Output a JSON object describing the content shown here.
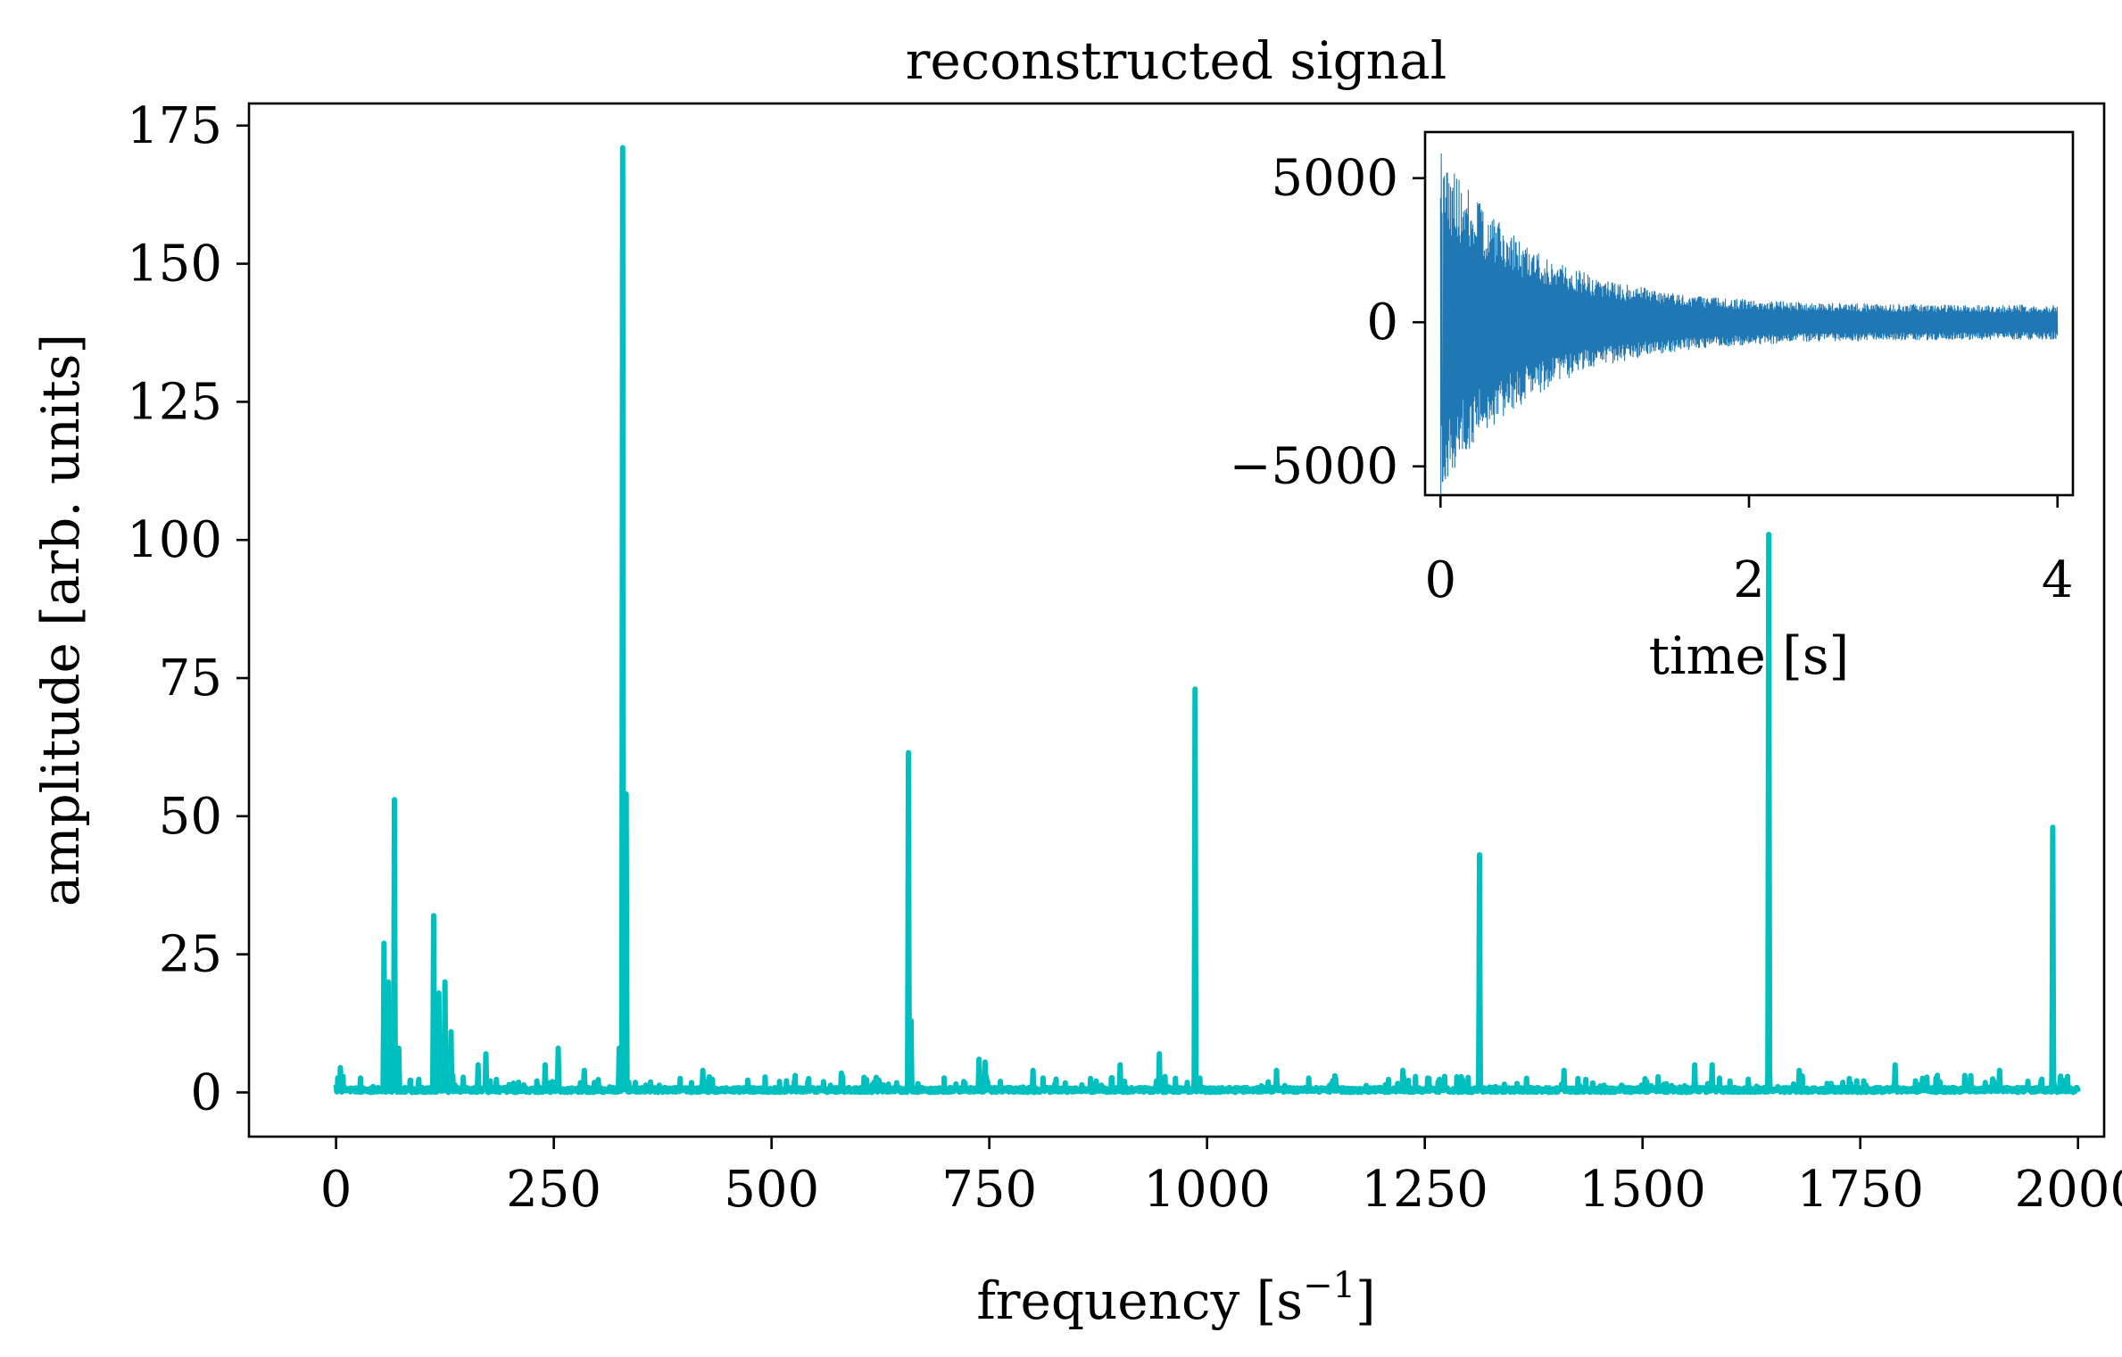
{
  "chart_data": [
    {
      "type": "line",
      "title": "reconstructed signal",
      "xlabel": "frequency [s",
      "xlabel_sup": "−1",
      "xlabel_end": "]",
      "ylabel": "amplitude [arb. units]",
      "xlim": [
        -100,
        2030
      ],
      "ylim": [
        -8,
        179
      ],
      "xticks": [
        0,
        250,
        500,
        750,
        1000,
        1250,
        1500,
        1750,
        2000
      ],
      "xtick_labels": [
        "0",
        "250",
        "500",
        "750",
        "1000",
        "1250",
        "1500",
        "1750",
        "2000"
      ],
      "yticks": [
        0,
        25,
        50,
        75,
        100,
        125,
        150,
        175
      ],
      "ytick_labels": [
        "0",
        "25",
        "50",
        "75",
        "100",
        "125",
        "150",
        "175"
      ],
      "grid": false,
      "color": "#00bfbf",
      "x_range": [
        0,
        2000
      ],
      "peaks": [
        {
          "x": 5,
          "y": 4.5
        },
        {
          "x": 55,
          "y": 27
        },
        {
          "x": 60,
          "y": 20
        },
        {
          "x": 67,
          "y": 53
        },
        {
          "x": 72,
          "y": 8
        },
        {
          "x": 112,
          "y": 32
        },
        {
          "x": 118,
          "y": 18
        },
        {
          "x": 125,
          "y": 20
        },
        {
          "x": 132,
          "y": 11
        },
        {
          "x": 163,
          "y": 5
        },
        {
          "x": 172,
          "y": 7
        },
        {
          "x": 240,
          "y": 5
        },
        {
          "x": 255,
          "y": 8
        },
        {
          "x": 285,
          "y": 4
        },
        {
          "x": 325,
          "y": 8
        },
        {
          "x": 329,
          "y": 171
        },
        {
          "x": 333,
          "y": 54
        },
        {
          "x": 421,
          "y": 4
        },
        {
          "x": 580,
          "y": 3.5
        },
        {
          "x": 657,
          "y": 61.5
        },
        {
          "x": 660,
          "y": 13
        },
        {
          "x": 738,
          "y": 6
        },
        {
          "x": 745,
          "y": 5.5
        },
        {
          "x": 800,
          "y": 4
        },
        {
          "x": 900,
          "y": 5
        },
        {
          "x": 945,
          "y": 7
        },
        {
          "x": 986,
          "y": 73
        },
        {
          "x": 1080,
          "y": 4
        },
        {
          "x": 1225,
          "y": 4
        },
        {
          "x": 1313,
          "y": 43
        },
        {
          "x": 1410,
          "y": 4
        },
        {
          "x": 1560,
          "y": 5
        },
        {
          "x": 1580,
          "y": 5
        },
        {
          "x": 1645,
          "y": 101
        },
        {
          "x": 1680,
          "y": 4
        },
        {
          "x": 1790,
          "y": 5
        },
        {
          "x": 1910,
          "y": 4
        },
        {
          "x": 1971,
          "y": 48
        }
      ]
    },
    {
      "type": "line",
      "title": "",
      "xlabel": "time [s]",
      "ylabel": "",
      "xlim": [
        -0.1,
        4.1
      ],
      "ylim": [
        -6000,
        6600
      ],
      "xticks": [
        0,
        2,
        4
      ],
      "xtick_labels": [
        "0",
        "2",
        "4"
      ],
      "yticks": [
        -5000,
        0,
        5000
      ],
      "ytick_labels": [
        "−5000",
        "0",
        "5000"
      ],
      "grid": false,
      "color": "#1f77b4",
      "x_range": [
        0,
        4
      ],
      "envelope": {
        "peak_amplitude": 6000,
        "min_value": -5500,
        "decay_time_s": 0.6,
        "floor_amplitude": 600
      }
    }
  ]
}
